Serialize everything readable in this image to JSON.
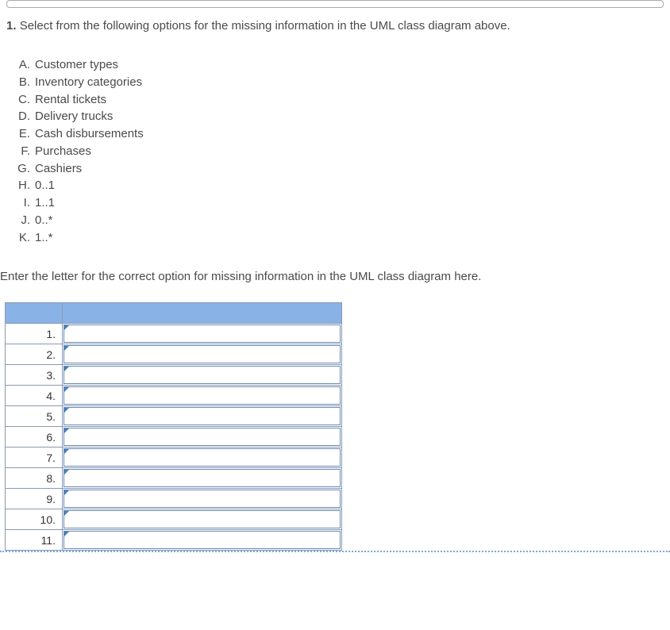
{
  "question": {
    "number": "1.",
    "text": "Select from the following options for the missing information in the UML class diagram above."
  },
  "options": [
    {
      "letter": "A.",
      "text": "Customer types"
    },
    {
      "letter": "B.",
      "text": "Inventory categories"
    },
    {
      "letter": "C.",
      "text": "Rental tickets"
    },
    {
      "letter": "D.",
      "text": "Delivery trucks"
    },
    {
      "letter": "E.",
      "text": "Cash disbursements"
    },
    {
      "letter": "F.",
      "text": "Purchases"
    },
    {
      "letter": "G.",
      "text": "Cashiers"
    },
    {
      "letter": "H.",
      "text": "0..1"
    },
    {
      "letter": "I.",
      "text": "1..1"
    },
    {
      "letter": "J.",
      "text": "0..*"
    },
    {
      "letter": "K.",
      "text": "1..*"
    }
  ],
  "instruction": "Enter the letter for the correct option for missing information in the UML class diagram here.",
  "table": {
    "header_bg": "#89b3e6",
    "border_color": "#8a9ab0",
    "rows": [
      {
        "num": "1."
      },
      {
        "num": "2."
      },
      {
        "num": "3."
      },
      {
        "num": "4."
      },
      {
        "num": "5."
      },
      {
        "num": "6."
      },
      {
        "num": "7."
      },
      {
        "num": "8."
      },
      {
        "num": "9."
      },
      {
        "num": "10."
      },
      {
        "num": "11."
      }
    ]
  }
}
